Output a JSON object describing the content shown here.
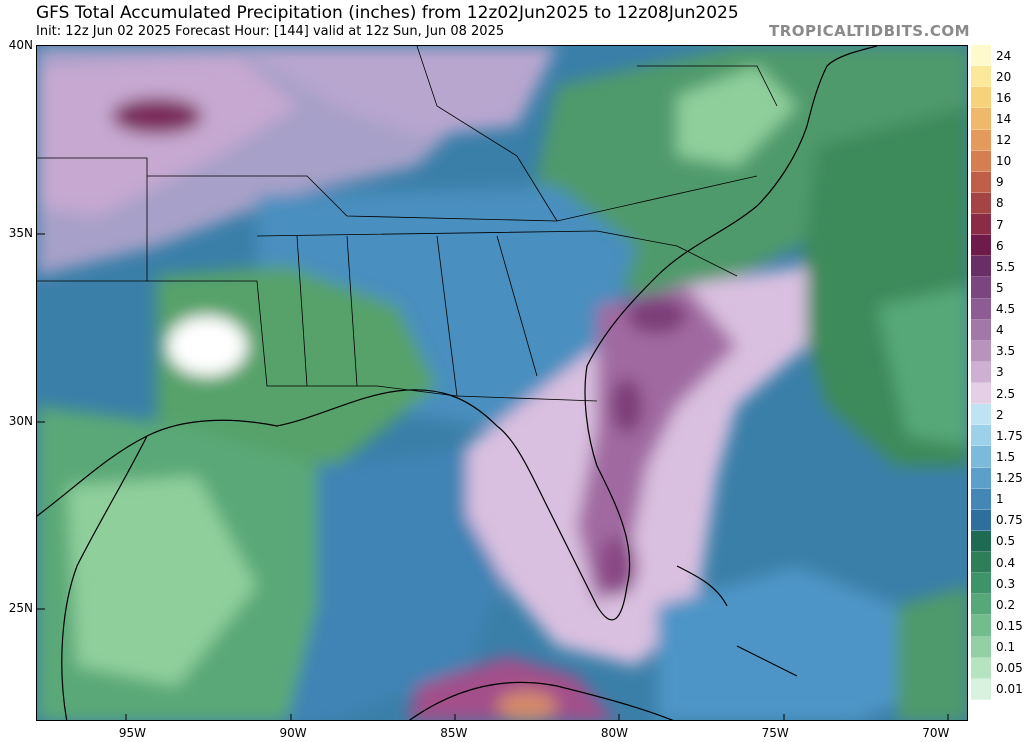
{
  "header": {
    "title": "GFS Total Accumulated Precipitation (inches) from 12z02Jun2025 to 12z08Jun2025",
    "subtitle": "Init: 12z Jun 02 2025   Forecast Hour: [144]   valid at 12z Sun, Jun 08 2025",
    "watermark": "TROPICALTIDBITS.COM"
  },
  "map": {
    "lat_range": [
      22,
      40
    ],
    "lon_range": [
      -98,
      -69
    ],
    "lat_labels": [
      {
        "lat": 40,
        "text": "40N"
      },
      {
        "lat": 35,
        "text": "35N"
      },
      {
        "lat": 30,
        "text": "30N"
      },
      {
        "lat": 25,
        "text": "25N"
      }
    ],
    "lon_labels": [
      {
        "lon": -95,
        "text": "95W"
      },
      {
        "lon": -90,
        "text": "90W"
      },
      {
        "lon": -85,
        "text": "85W"
      },
      {
        "lon": -80,
        "text": "80W"
      },
      {
        "lon": -75,
        "text": "75W"
      },
      {
        "lon": -70,
        "text": "70W"
      }
    ],
    "precip_regions": [
      {
        "name": "gulf-green-field",
        "level": "0.2",
        "color": "#56a26b"
      },
      {
        "name": "texas-light-green",
        "level": "0.1",
        "color": "#8fcf9c"
      },
      {
        "name": "louisiana-dry",
        "level": "0.01",
        "color": "#ffffff"
      },
      {
        "name": "atlantic-green",
        "level": "0.3",
        "color": "#3e8a5a"
      },
      {
        "name": "florida-pink",
        "level": "2.5",
        "color": "#e9cce6"
      },
      {
        "name": "atlantic-purple-band",
        "level": "4",
        "color": "#a06aa0"
      },
      {
        "name": "cuba-maximum",
        "level": "10",
        "color": "#d48a6a"
      },
      {
        "name": "midwest-purple",
        "level": "2.5",
        "color": "#d8b8dc"
      },
      {
        "name": "plains-max",
        "level": "6",
        "color": "#7a2a5a"
      }
    ]
  },
  "colorbar": {
    "levels": [
      {
        "label": "24",
        "color": "#fffacd"
      },
      {
        "label": "20",
        "color": "#fbe89a"
      },
      {
        "label": "16",
        "color": "#f6d37a"
      },
      {
        "label": "14",
        "color": "#efb86a"
      },
      {
        "label": "12",
        "color": "#e49a5c"
      },
      {
        "label": "10",
        "color": "#d47e52"
      },
      {
        "label": "9",
        "color": "#bf5f4a"
      },
      {
        "label": "8",
        "color": "#a54444"
      },
      {
        "label": "7",
        "color": "#8a2c46"
      },
      {
        "label": "6",
        "color": "#6e1a4a"
      },
      {
        "label": "5.5",
        "color": "#6a2e66"
      },
      {
        "label": "5",
        "color": "#7b4680"
      },
      {
        "label": "4.5",
        "color": "#8e5c94"
      },
      {
        "label": "4",
        "color": "#a278a8"
      },
      {
        "label": "3.5",
        "color": "#b894bd"
      },
      {
        "label": "3",
        "color": "#cdb0d2"
      },
      {
        "label": "2.5",
        "color": "#e5cfe6"
      },
      {
        "label": "2",
        "color": "#bfe3f3"
      },
      {
        "label": "1.75",
        "color": "#9dd1ea"
      },
      {
        "label": "1.5",
        "color": "#7bbadb"
      },
      {
        "label": "1.25",
        "color": "#5c9fca"
      },
      {
        "label": "1",
        "color": "#4487b6"
      },
      {
        "label": "0.75",
        "color": "#2f6f9e"
      },
      {
        "label": "0.5",
        "color": "#1f6a52"
      },
      {
        "label": "0.4",
        "color": "#2e7e5a"
      },
      {
        "label": "0.3",
        "color": "#3e9368"
      },
      {
        "label": "0.2",
        "color": "#56a878"
      },
      {
        "label": "0.15",
        "color": "#73bd8d"
      },
      {
        "label": "0.1",
        "color": "#93d1a4"
      },
      {
        "label": "0.05",
        "color": "#b6e3c0"
      },
      {
        "label": "0.01",
        "color": "#d9f2df"
      },
      {
        "label": "",
        "color": "#ffffff"
      }
    ]
  }
}
